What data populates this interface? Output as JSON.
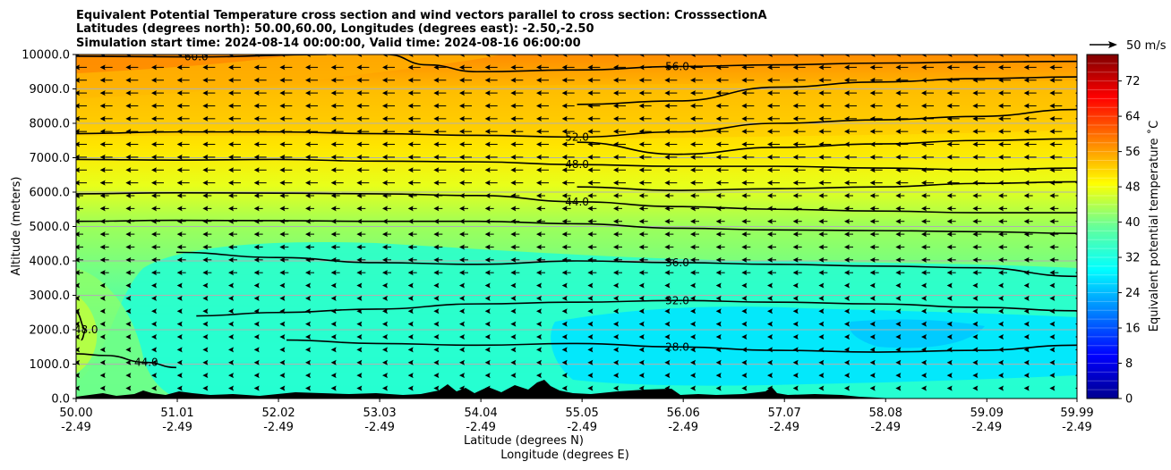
{
  "chart_data": {
    "type": "heatmap",
    "title_lines": [
      "Equivalent Potential Temperature cross section and wind vectors parallel to cross section: CrosssectionA",
      "Latitudes (degrees north): 50.00,60.00, Longitudes (degrees east): -2.50,-2.50",
      "Simulation start time: 2024-08-14 00:00:00, Valid time: 2024-08-16 06:00:00"
    ],
    "xlabel_lines": [
      "Latitude (degrees N)",
      "Longitude (degrees E)"
    ],
    "ylabel": "Altitude (meters)",
    "x_range": [
      50.0,
      59.99
    ],
    "y_range": [
      0,
      10000
    ],
    "x_ticks": [
      {
        "lat": "50.00",
        "lon": "-2.49",
        "v": 50.0
      },
      {
        "lat": "51.01",
        "lon": "-2.49",
        "v": 51.01
      },
      {
        "lat": "52.02",
        "lon": "-2.49",
        "v": 52.02
      },
      {
        "lat": "53.03",
        "lon": "-2.49",
        "v": 53.03
      },
      {
        "lat": "54.04",
        "lon": "-2.49",
        "v": 54.04
      },
      {
        "lat": "55.05",
        "lon": "-2.49",
        "v": 55.05
      },
      {
        "lat": "56.06",
        "lon": "-2.49",
        "v": 56.06
      },
      {
        "lat": "57.07",
        "lon": "-2.49",
        "v": 57.07
      },
      {
        "lat": "58.08",
        "lon": "-2.49",
        "v": 58.08
      },
      {
        "lat": "59.09",
        "lon": "-2.49",
        "v": 59.09
      },
      {
        "lat": "59.99",
        "lon": "-2.49",
        "v": 59.99
      }
    ],
    "y_ticks": [
      {
        "label": "0.0",
        "v": 0
      },
      {
        "label": "1000.0",
        "v": 1000
      },
      {
        "label": "2000.0",
        "v": 2000
      },
      {
        "label": "3000.0",
        "v": 3000
      },
      {
        "label": "4000.0",
        "v": 4000
      },
      {
        "label": "5000.0",
        "v": 5000
      },
      {
        "label": "6000.0",
        "v": 6000
      },
      {
        "label": "7000.0",
        "v": 7000
      },
      {
        "label": "8000.0",
        "v": 8000
      },
      {
        "label": "9000.0",
        "v": 9000
      },
      {
        "label": "10000.0",
        "v": 10000
      }
    ],
    "grid": "horizontal",
    "colorbar": {
      "label": "Equivalent potential temperature $^\\circ$C",
      "label_display": "Equivalent potential temperature ˚C",
      "range": [
        0,
        78
      ],
      "ticks": [
        "0",
        "8",
        "16",
        "24",
        "32",
        "40",
        "48",
        "56",
        "64",
        "72"
      ],
      "tick_values": [
        0,
        8,
        16,
        24,
        32,
        40,
        48,
        56,
        64,
        72
      ],
      "colormap": "jet"
    },
    "quiver_key": {
      "label": "50 m/s"
    },
    "contour_levels": [
      {
        "value": 60,
        "label": "60.0",
        "height_at_x": [
          [
            50.0,
            9950
          ],
          [
            51.2,
            9930
          ],
          [
            52.5,
            10000
          ]
        ]
      },
      {
        "value": 56,
        "label": "56.0",
        "height_at_x": [
          [
            53.1,
            10000
          ],
          [
            53.5,
            9700
          ],
          [
            54.0,
            9500
          ],
          [
            55.0,
            9550
          ],
          [
            56.0,
            9650
          ],
          [
            57.0,
            9700
          ],
          [
            58.0,
            9750
          ],
          [
            59.0,
            9780
          ],
          [
            59.99,
            9800
          ]
        ]
      },
      {
        "value": 54,
        "label": "",
        "height_at_x": [
          [
            55.0,
            8550
          ],
          [
            56.0,
            8650
          ],
          [
            57.0,
            9050
          ],
          [
            58.0,
            9200
          ],
          [
            59.0,
            9300
          ],
          [
            59.99,
            9350
          ]
        ]
      },
      {
        "value": 52,
        "label": "52.0",
        "height_at_x": [
          [
            50.0,
            7700
          ],
          [
            51.0,
            7750
          ],
          [
            52.0,
            7750
          ],
          [
            53.0,
            7700
          ],
          [
            54.0,
            7650
          ],
          [
            55.0,
            7600
          ],
          [
            56.0,
            7750
          ],
          [
            57.0,
            8000
          ],
          [
            58.0,
            8100
          ],
          [
            59.0,
            8200
          ],
          [
            59.99,
            8400
          ]
        ]
      },
      {
        "value": 50,
        "label": "",
        "height_at_x": [
          [
            55.0,
            7450
          ],
          [
            56.0,
            7100
          ],
          [
            57.0,
            7300
          ],
          [
            58.0,
            7400
          ],
          [
            59.0,
            7500
          ],
          [
            59.99,
            7550
          ]
        ]
      },
      {
        "value": 48,
        "label": "48.0",
        "height_at_x": [
          [
            50.0,
            6950
          ],
          [
            51.0,
            6930
          ],
          [
            52.0,
            6950
          ],
          [
            53.0,
            6900
          ],
          [
            54.0,
            6880
          ],
          [
            55.0,
            6800
          ],
          [
            56.0,
            6750
          ],
          [
            57.0,
            6750
          ],
          [
            58.0,
            6700
          ],
          [
            59.0,
            6650
          ],
          [
            59.99,
            6700
          ]
        ]
      },
      {
        "value": 46,
        "label": "",
        "height_at_x": [
          [
            55.0,
            6150
          ],
          [
            56.0,
            6050
          ],
          [
            57.0,
            6100
          ],
          [
            58.0,
            6150
          ],
          [
            59.0,
            6250
          ],
          [
            59.99,
            6300
          ]
        ]
      },
      {
        "value": 44,
        "label": "44.0",
        "height_at_x": [
          [
            50.0,
            5950
          ],
          [
            51.0,
            5980
          ],
          [
            52.0,
            5970
          ],
          [
            53.0,
            5950
          ],
          [
            54.0,
            5900
          ],
          [
            55.0,
            5720
          ],
          [
            56.0,
            5580
          ],
          [
            57.0,
            5500
          ],
          [
            58.0,
            5450
          ],
          [
            59.0,
            5400
          ],
          [
            59.99,
            5400
          ]
        ]
      },
      {
        "value": 42,
        "label": "",
        "height_at_x": [
          [
            50.0,
            5150
          ],
          [
            51.0,
            5180
          ],
          [
            52.0,
            5170
          ],
          [
            53.0,
            5150
          ],
          [
            54.0,
            5150
          ],
          [
            55.0,
            5080
          ],
          [
            56.0,
            4950
          ],
          [
            57.0,
            4900
          ],
          [
            58.0,
            4880
          ],
          [
            59.0,
            4850
          ],
          [
            59.99,
            4800
          ]
        ]
      },
      {
        "value": 36,
        "label": "36.0",
        "height_at_x": [
          [
            51.0,
            4250
          ],
          [
            52.0,
            4100
          ],
          [
            53.0,
            3950
          ],
          [
            54.0,
            3900
          ],
          [
            55.0,
            4000
          ],
          [
            56.0,
            3950
          ],
          [
            57.0,
            3900
          ],
          [
            58.0,
            3850
          ],
          [
            59.0,
            3800
          ],
          [
            59.99,
            3550
          ]
        ]
      },
      {
        "value": 32,
        "label": "32.0",
        "height_at_x": [
          [
            51.2,
            2400
          ],
          [
            52.0,
            2500
          ],
          [
            53.0,
            2600
          ],
          [
            54.0,
            2750
          ],
          [
            55.0,
            2800
          ],
          [
            56.0,
            2850
          ],
          [
            57.0,
            2800
          ],
          [
            58.0,
            2750
          ],
          [
            59.0,
            2650
          ],
          [
            59.99,
            2550
          ]
        ]
      },
      {
        "value": 28,
        "label": "28.0",
        "height_at_x": [
          [
            52.1,
            1700
          ],
          [
            53.0,
            1600
          ],
          [
            54.0,
            1550
          ],
          [
            55.0,
            1600
          ],
          [
            56.0,
            1500
          ],
          [
            57.0,
            1400
          ],
          [
            58.0,
            1350
          ],
          [
            59.0,
            1400
          ],
          [
            59.99,
            1550
          ]
        ]
      },
      {
        "value": 44,
        "label": "44.0",
        "height_at_x": [
          [
            50.0,
            1300
          ],
          [
            50.3,
            1250
          ],
          [
            50.7,
            1050
          ],
          [
            51.0,
            900
          ]
        ]
      },
      {
        "value": 48,
        "label": "48.0",
        "height_at_x": [
          [
            50.0,
            2500
          ],
          [
            50.1,
            2000
          ],
          [
            50.05,
            1700
          ]
        ]
      }
    ],
    "wind": {
      "direction": "negative x (southward along section)",
      "typical_speed_mps_upper": 22,
      "typical_speed_mps_lower": 6
    },
    "terrain": "low terrain along surface between 50.0 and 57.5 degrees N, highest near 54.5-55.0"
  }
}
